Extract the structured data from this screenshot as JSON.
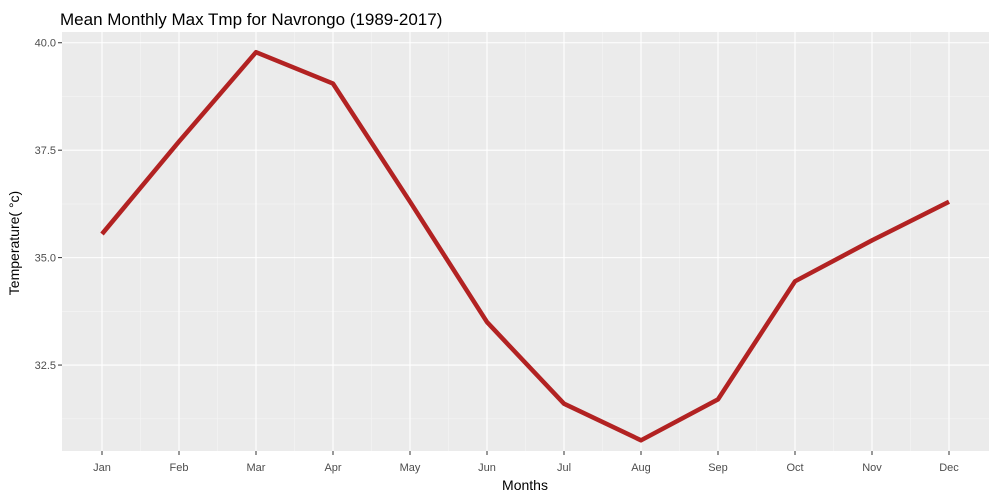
{
  "chart_data": {
    "type": "line",
    "title": "Mean Monthly Max Tmp for Navrongo (1989-2017)",
    "xlabel": "Months",
    "ylabel": "Temperature( °c)",
    "categories": [
      "Jan",
      "Feb",
      "Mar",
      "Apr",
      "May",
      "Jun",
      "Jul",
      "Aug",
      "Sep",
      "Oct",
      "Nov",
      "Dec"
    ],
    "series": [
      {
        "values": [
          35.55,
          37.7,
          39.78,
          39.05,
          36.3,
          33.5,
          31.6,
          30.75,
          31.7,
          34.45,
          35.4,
          36.3
        ]
      }
    ],
    "yticks": [
      32.5,
      35.0,
      37.5,
      40.0
    ],
    "ytick_labels": [
      "32.5",
      "35.0",
      "37.5",
      "40.0"
    ],
    "ylim": [
      30.5,
      40.25
    ],
    "grid": true,
    "colors": {
      "line": "#B22222",
      "panel_background": "#EBEBEB",
      "grid_major": "#FFFFFF",
      "grid_minor": "#F5F5F5"
    }
  }
}
